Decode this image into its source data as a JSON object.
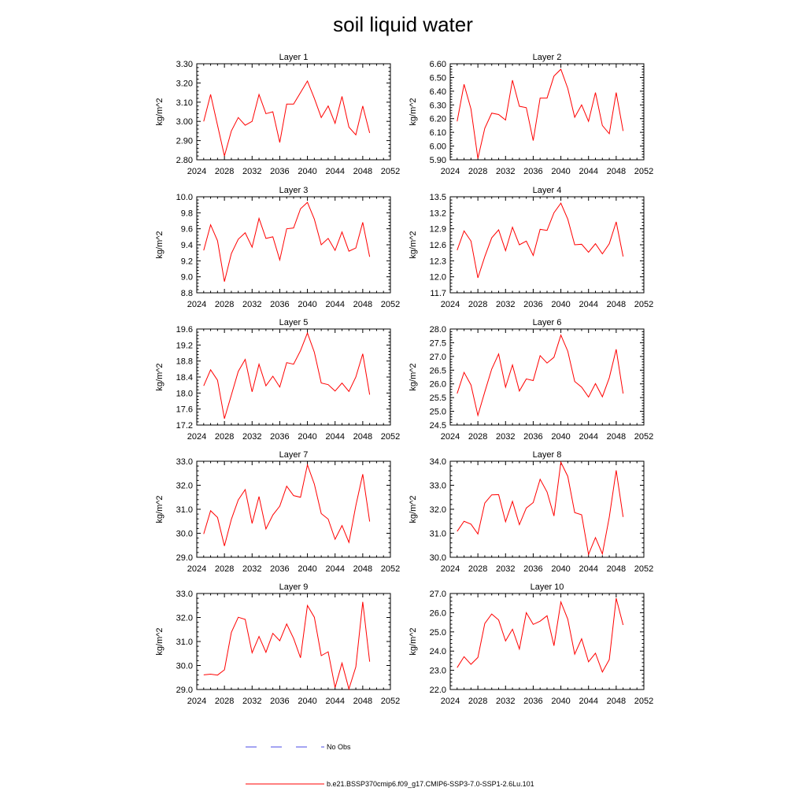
{
  "figure": {
    "title": "soil liquid water"
  },
  "legend": {
    "items": [
      {
        "label": "No Obs",
        "color": "#4a4ae6",
        "style": "dashed"
      },
      {
        "label": "b.e21.BSSP370cmip6.f09_g17.CMIP6-SSP3-7.0-SSP1-2.6Lu.101",
        "color": "#ff0000",
        "style": "solid"
      }
    ]
  },
  "colors": {
    "series": "#ff0000",
    "obs": "#4a4ae6"
  },
  "chart_data": [
    {
      "type": "line",
      "title": "Layer 1",
      "ylabel": "kg/m^2",
      "xlim": [
        2024,
        2052
      ],
      "ylim": [
        2.8,
        3.3
      ],
      "xticks": [
        "2024",
        "2028",
        "2032",
        "2036",
        "2040",
        "2044",
        "2048",
        "2052"
      ],
      "yticks": [
        "2.80",
        "2.90",
        "3.00",
        "3.10",
        "3.20",
        "3.30"
      ],
      "x": [
        2025,
        2026,
        2027,
        2028,
        2029,
        2030,
        2031,
        2032,
        2033,
        2034,
        2035,
        2036,
        2037,
        2038,
        2039,
        2040,
        2041,
        2042,
        2043,
        2044,
        2045,
        2046,
        2047,
        2048,
        2049
      ],
      "series": [
        {
          "values": [
            3.0,
            3.14,
            2.98,
            2.82,
            2.95,
            3.02,
            2.98,
            3.0,
            3.14,
            3.04,
            3.05,
            2.89,
            3.09,
            3.09,
            3.15,
            3.21,
            3.12,
            3.02,
            3.08,
            2.99,
            3.13,
            2.97,
            2.93,
            3.08,
            2.94
          ]
        }
      ]
    },
    {
      "type": "line",
      "title": "Layer 2",
      "ylabel": "kg/m^2",
      "xlim": [
        2024,
        2052
      ],
      "ylim": [
        5.9,
        6.6
      ],
      "xticks": [
        "2024",
        "2028",
        "2032",
        "2036",
        "2040",
        "2044",
        "2048",
        "2052"
      ],
      "yticks": [
        "5.90",
        "6.00",
        "6.10",
        "6.20",
        "6.30",
        "6.40",
        "6.50",
        "6.60"
      ],
      "x": [
        2025,
        2026,
        2027,
        2028,
        2029,
        2030,
        2031,
        2032,
        2033,
        2034,
        2035,
        2036,
        2037,
        2038,
        2039,
        2040,
        2041,
        2042,
        2043,
        2044,
        2045,
        2046,
        2047,
        2048,
        2049
      ],
      "series": [
        {
          "values": [
            6.18,
            6.45,
            6.27,
            5.91,
            6.13,
            6.24,
            6.23,
            6.19,
            6.48,
            6.29,
            6.28,
            6.04,
            6.35,
            6.35,
            6.51,
            6.56,
            6.42,
            6.21,
            6.3,
            6.18,
            6.39,
            6.15,
            6.09,
            6.39,
            6.11
          ]
        }
      ]
    },
    {
      "type": "line",
      "title": "Layer 3",
      "ylabel": "kg/m^2",
      "xlim": [
        2024,
        2052
      ],
      "ylim": [
        8.8,
        10.0
      ],
      "xticks": [
        "2024",
        "2028",
        "2032",
        "2036",
        "2040",
        "2044",
        "2048",
        "2052"
      ],
      "yticks": [
        "8.8",
        "9.0",
        "9.2",
        "9.4",
        "9.6",
        "9.8",
        "10.0"
      ],
      "x": [
        2025,
        2026,
        2027,
        2028,
        2029,
        2030,
        2031,
        2032,
        2033,
        2034,
        2035,
        2036,
        2037,
        2038,
        2039,
        2040,
        2041,
        2042,
        2043,
        2044,
        2045,
        2046,
        2047,
        2048,
        2049
      ],
      "series": [
        {
          "values": [
            9.33,
            9.65,
            9.45,
            8.94,
            9.29,
            9.47,
            9.55,
            9.37,
            9.73,
            9.48,
            9.5,
            9.21,
            9.6,
            9.61,
            9.85,
            9.93,
            9.72,
            9.4,
            9.48,
            9.33,
            9.56,
            9.32,
            9.36,
            9.68,
            9.25
          ]
        }
      ]
    },
    {
      "type": "line",
      "title": "Layer 4",
      "ylabel": "kg/m^2",
      "xlim": [
        2024,
        2052
      ],
      "ylim": [
        11.7,
        13.5
      ],
      "xticks": [
        "2024",
        "2028",
        "2032",
        "2036",
        "2040",
        "2044",
        "2048",
        "2052"
      ],
      "yticks": [
        "11.7",
        "12.0",
        "12.3",
        "12.6",
        "12.9",
        "13.2",
        "13.5"
      ],
      "x": [
        2025,
        2026,
        2027,
        2028,
        2029,
        2030,
        2031,
        2032,
        2033,
        2034,
        2035,
        2036,
        2037,
        2038,
        2039,
        2040,
        2041,
        2042,
        2043,
        2044,
        2045,
        2046,
        2047,
        2048,
        2049
      ],
      "series": [
        {
          "values": [
            12.5,
            12.86,
            12.67,
            11.98,
            12.38,
            12.73,
            12.88,
            12.49,
            12.93,
            12.6,
            12.67,
            12.4,
            12.89,
            12.87,
            13.2,
            13.38,
            13.08,
            12.6,
            12.61,
            12.46,
            12.62,
            12.43,
            12.62,
            13.03,
            12.38
          ]
        }
      ]
    },
    {
      "type": "line",
      "title": "Layer 5",
      "ylabel": "kg/m^2",
      "xlim": [
        2024,
        2052
      ],
      "ylim": [
        17.2,
        19.6
      ],
      "xticks": [
        "2024",
        "2028",
        "2032",
        "2036",
        "2040",
        "2044",
        "2048",
        "2052"
      ],
      "yticks": [
        "17.2",
        "17.6",
        "18.0",
        "18.4",
        "18.8",
        "19.2",
        "19.6"
      ],
      "x": [
        2025,
        2026,
        2027,
        2028,
        2029,
        2030,
        2031,
        2032,
        2033,
        2034,
        2035,
        2036,
        2037,
        2038,
        2039,
        2040,
        2041,
        2042,
        2043,
        2044,
        2045,
        2046,
        2047,
        2048,
        2049
      ],
      "series": [
        {
          "values": [
            18.18,
            18.58,
            18.32,
            17.36,
            17.95,
            18.54,
            18.84,
            18.03,
            18.72,
            18.18,
            18.42,
            18.15,
            18.76,
            18.72,
            19.06,
            19.5,
            19.02,
            18.25,
            18.21,
            18.05,
            18.25,
            18.04,
            18.4,
            18.98,
            17.96
          ]
        }
      ]
    },
    {
      "type": "line",
      "title": "Layer 6",
      "ylabel": "kg/m^2",
      "xlim": [
        2024,
        2052
      ],
      "ylim": [
        24.5,
        28.0
      ],
      "xticks": [
        "2024",
        "2028",
        "2032",
        "2036",
        "2040",
        "2044",
        "2048",
        "2052"
      ],
      "yticks": [
        "24.5",
        "25.0",
        "25.5",
        "26.0",
        "26.5",
        "27.0",
        "27.5",
        "28.0"
      ],
      "x": [
        2025,
        2026,
        2027,
        2028,
        2029,
        2030,
        2031,
        2032,
        2033,
        2034,
        2035,
        2036,
        2037,
        2038,
        2039,
        2040,
        2041,
        2042,
        2043,
        2044,
        2045,
        2046,
        2047,
        2048,
        2049
      ],
      "series": [
        {
          "values": [
            25.65,
            26.42,
            25.96,
            24.85,
            25.71,
            26.54,
            27.09,
            25.88,
            26.69,
            25.74,
            26.18,
            26.12,
            27.03,
            26.76,
            26.97,
            27.78,
            27.19,
            26.09,
            25.88,
            25.52,
            26.01,
            25.53,
            26.22,
            27.26,
            25.65
          ]
        }
      ]
    },
    {
      "type": "line",
      "title": "Layer 7",
      "ylabel": "kg/m^2",
      "xlim": [
        2024,
        2052
      ],
      "ylim": [
        29.0,
        33.0
      ],
      "xticks": [
        "2024",
        "2028",
        "2032",
        "2036",
        "2040",
        "2044",
        "2048",
        "2052"
      ],
      "yticks": [
        "29.0",
        "30.0",
        "31.0",
        "32.0",
        "33.0"
      ],
      "x": [
        2025,
        2026,
        2027,
        2028,
        2029,
        2030,
        2031,
        2032,
        2033,
        2034,
        2035,
        2036,
        2037,
        2038,
        2039,
        2040,
        2041,
        2042,
        2043,
        2044,
        2045,
        2046,
        2047,
        2048,
        2049
      ],
      "series": [
        {
          "values": [
            29.97,
            30.94,
            30.66,
            29.47,
            30.58,
            31.39,
            31.82,
            30.41,
            31.53,
            30.18,
            30.76,
            31.13,
            31.96,
            31.57,
            31.5,
            32.85,
            32.05,
            30.82,
            30.59,
            29.75,
            30.32,
            29.62,
            31.15,
            32.46,
            30.49
          ]
        }
      ]
    },
    {
      "type": "line",
      "title": "Layer 8",
      "ylabel": "kg/m^2",
      "xlim": [
        2024,
        2052
      ],
      "ylim": [
        30.0,
        34.0
      ],
      "xticks": [
        "2024",
        "2028",
        "2032",
        "2036",
        "2040",
        "2044",
        "2048",
        "2052"
      ],
      "yticks": [
        "30.0",
        "31.0",
        "32.0",
        "33.0",
        "34.0"
      ],
      "x": [
        2025,
        2026,
        2027,
        2028,
        2029,
        2030,
        2031,
        2032,
        2033,
        2034,
        2035,
        2036,
        2037,
        2038,
        2039,
        2040,
        2041,
        2042,
        2043,
        2044,
        2045,
        2046,
        2047,
        2048,
        2049
      ],
      "series": [
        {
          "values": [
            31.08,
            31.5,
            31.38,
            30.97,
            32.26,
            32.6,
            32.61,
            31.48,
            32.33,
            31.36,
            32.05,
            32.28,
            33.25,
            32.72,
            31.72,
            33.96,
            33.37,
            31.86,
            31.77,
            30.12,
            30.82,
            30.14,
            31.67,
            33.62,
            31.68
          ]
        }
      ]
    },
    {
      "type": "line",
      "title": "Layer 9",
      "ylabel": "kg/m^2",
      "xlim": [
        2024,
        2052
      ],
      "ylim": [
        29.0,
        33.0
      ],
      "xticks": [
        "2024",
        "2028",
        "2032",
        "2036",
        "2040",
        "2044",
        "2048",
        "2052"
      ],
      "yticks": [
        "29.0",
        "30.0",
        "31.0",
        "32.0",
        "33.0"
      ],
      "x": [
        2025,
        2026,
        2027,
        2028,
        2029,
        2030,
        2031,
        2032,
        2033,
        2034,
        2035,
        2036,
        2037,
        2038,
        2039,
        2040,
        2041,
        2042,
        2043,
        2044,
        2045,
        2046,
        2047,
        2048,
        2049
      ],
      "series": [
        {
          "values": [
            29.61,
            29.64,
            29.6,
            29.82,
            31.38,
            32.01,
            31.92,
            30.53,
            31.21,
            30.55,
            31.34,
            31.03,
            31.73,
            31.13,
            30.32,
            32.5,
            32.01,
            30.41,
            30.57,
            29.08,
            30.1,
            29.02,
            29.94,
            32.65,
            30.16
          ]
        }
      ]
    },
    {
      "type": "line",
      "title": "Layer 10",
      "ylabel": "kg/m^2",
      "xlim": [
        2024,
        2052
      ],
      "ylim": [
        22.0,
        27.0
      ],
      "xticks": [
        "2024",
        "2028",
        "2032",
        "2036",
        "2040",
        "2044",
        "2048",
        "2052"
      ],
      "yticks": [
        "22.0",
        "23.0",
        "24.0",
        "25.0",
        "26.0",
        "27.0"
      ],
      "x": [
        2025,
        2026,
        2027,
        2028,
        2029,
        2030,
        2031,
        2032,
        2033,
        2034,
        2035,
        2036,
        2037,
        2038,
        2039,
        2040,
        2041,
        2042,
        2043,
        2044,
        2045,
        2046,
        2047,
        2048,
        2049
      ],
      "series": [
        {
          "values": [
            23.14,
            23.71,
            23.31,
            23.67,
            25.44,
            25.93,
            25.62,
            24.53,
            25.14,
            24.11,
            26.0,
            25.39,
            25.56,
            25.84,
            24.28,
            26.56,
            25.66,
            23.84,
            24.64,
            23.44,
            23.89,
            22.91,
            23.56,
            26.75,
            25.36
          ]
        }
      ]
    }
  ]
}
